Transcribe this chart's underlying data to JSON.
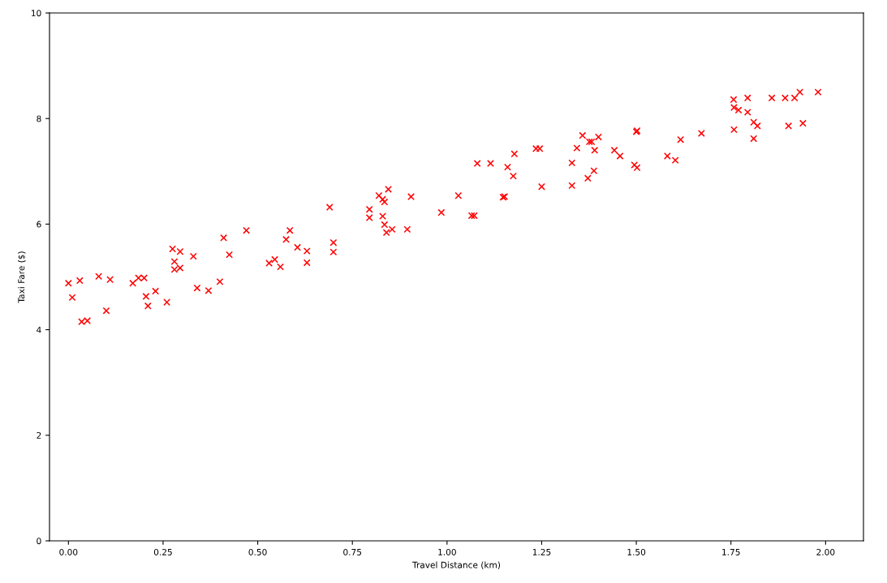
{
  "chart_data": {
    "type": "scatter",
    "xlabel": "Travel Distance (km)",
    "ylabel": "Taxi Fare ($)",
    "x": [
      0.0,
      0.01,
      0.03,
      0.035,
      0.05,
      0.08,
      0.11,
      0.1,
      0.17,
      0.185,
      0.2,
      0.205,
      0.21,
      0.23,
      0.26,
      0.275,
      0.295,
      0.28,
      0.28,
      0.295,
      0.33,
      0.34,
      0.37,
      0.4,
      0.41,
      0.425,
      0.47,
      0.69,
      0.585,
      0.575,
      0.605,
      0.63,
      0.63,
      0.545,
      0.53,
      0.56,
      0.7,
      0.7,
      0.795,
      0.795,
      0.82,
      0.845,
      0.83,
      0.835,
      0.83,
      0.835,
      0.84,
      0.855,
      0.895,
      0.905,
      0.985,
      1.03,
      1.065,
      1.072,
      1.08,
      1.115,
      1.148,
      1.152,
      1.16,
      1.175,
      1.178,
      1.235,
      1.245,
      1.25,
      1.33,
      1.33,
      1.343,
      1.358,
      1.376,
      1.382,
      1.4,
      1.39,
      1.372,
      1.388,
      1.442,
      1.457,
      1.5,
      1.502,
      1.495,
      1.502,
      1.582,
      1.603,
      1.617,
      1.672,
      1.757,
      1.758,
      1.77,
      1.794,
      1.794,
      1.758,
      1.81,
      1.82,
      1.81,
      1.858,
      1.893,
      1.918,
      1.932,
      1.98,
      1.902,
      1.94
    ],
    "values": [
      4.88,
      4.61,
      4.93,
      4.15,
      4.17,
      5.01,
      4.95,
      4.36,
      4.88,
      4.98,
      4.98,
      4.63,
      4.45,
      4.73,
      4.52,
      5.53,
      5.48,
      5.29,
      5.14,
      5.17,
      5.39,
      4.79,
      4.74,
      4.91,
      5.74,
      5.42,
      5.88,
      6.32,
      5.88,
      5.71,
      5.56,
      5.49,
      5.27,
      5.33,
      5.26,
      5.19,
      5.65,
      5.47,
      6.28,
      6.12,
      6.54,
      6.66,
      6.47,
      6.42,
      6.15,
      5.99,
      5.84,
      5.9,
      5.9,
      6.52,
      6.22,
      6.54,
      6.16,
      6.16,
      7.15,
      7.15,
      6.51,
      6.52,
      7.08,
      6.91,
      7.33,
      7.43,
      7.43,
      6.71,
      7.16,
      6.73,
      7.44,
      7.68,
      7.56,
      7.56,
      7.65,
      7.4,
      6.87,
      7.01,
      7.4,
      7.29,
      7.75,
      7.77,
      7.12,
      7.07,
      7.29,
      7.21,
      7.6,
      7.72,
      8.36,
      8.21,
      8.16,
      8.39,
      8.12,
      7.79,
      7.93,
      7.86,
      7.62,
      8.39,
      8.39,
      8.39,
      8.5,
      8.5,
      7.86,
      7.91
    ],
    "color": "#ff0000",
    "marker": "cross",
    "xlim": [
      -0.05,
      2.1
    ],
    "xticks": [
      {
        "value": 0,
        "label": "0.00"
      },
      {
        "value": 0.25,
        "label": "0.25"
      },
      {
        "value": 0.5,
        "label": "0.50"
      },
      {
        "value": 0.75,
        "label": "0.75"
      },
      {
        "value": 1,
        "label": "1.00"
      },
      {
        "value": 1.25,
        "label": "1.25"
      },
      {
        "value": 1.5,
        "label": "1.50"
      },
      {
        "value": 1.75,
        "label": "1.75"
      },
      {
        "value": 2,
        "label": "2.00"
      }
    ],
    "ylim": [
      0,
      10
    ],
    "yticks": [
      0,
      2,
      4,
      6,
      8,
      10
    ]
  }
}
